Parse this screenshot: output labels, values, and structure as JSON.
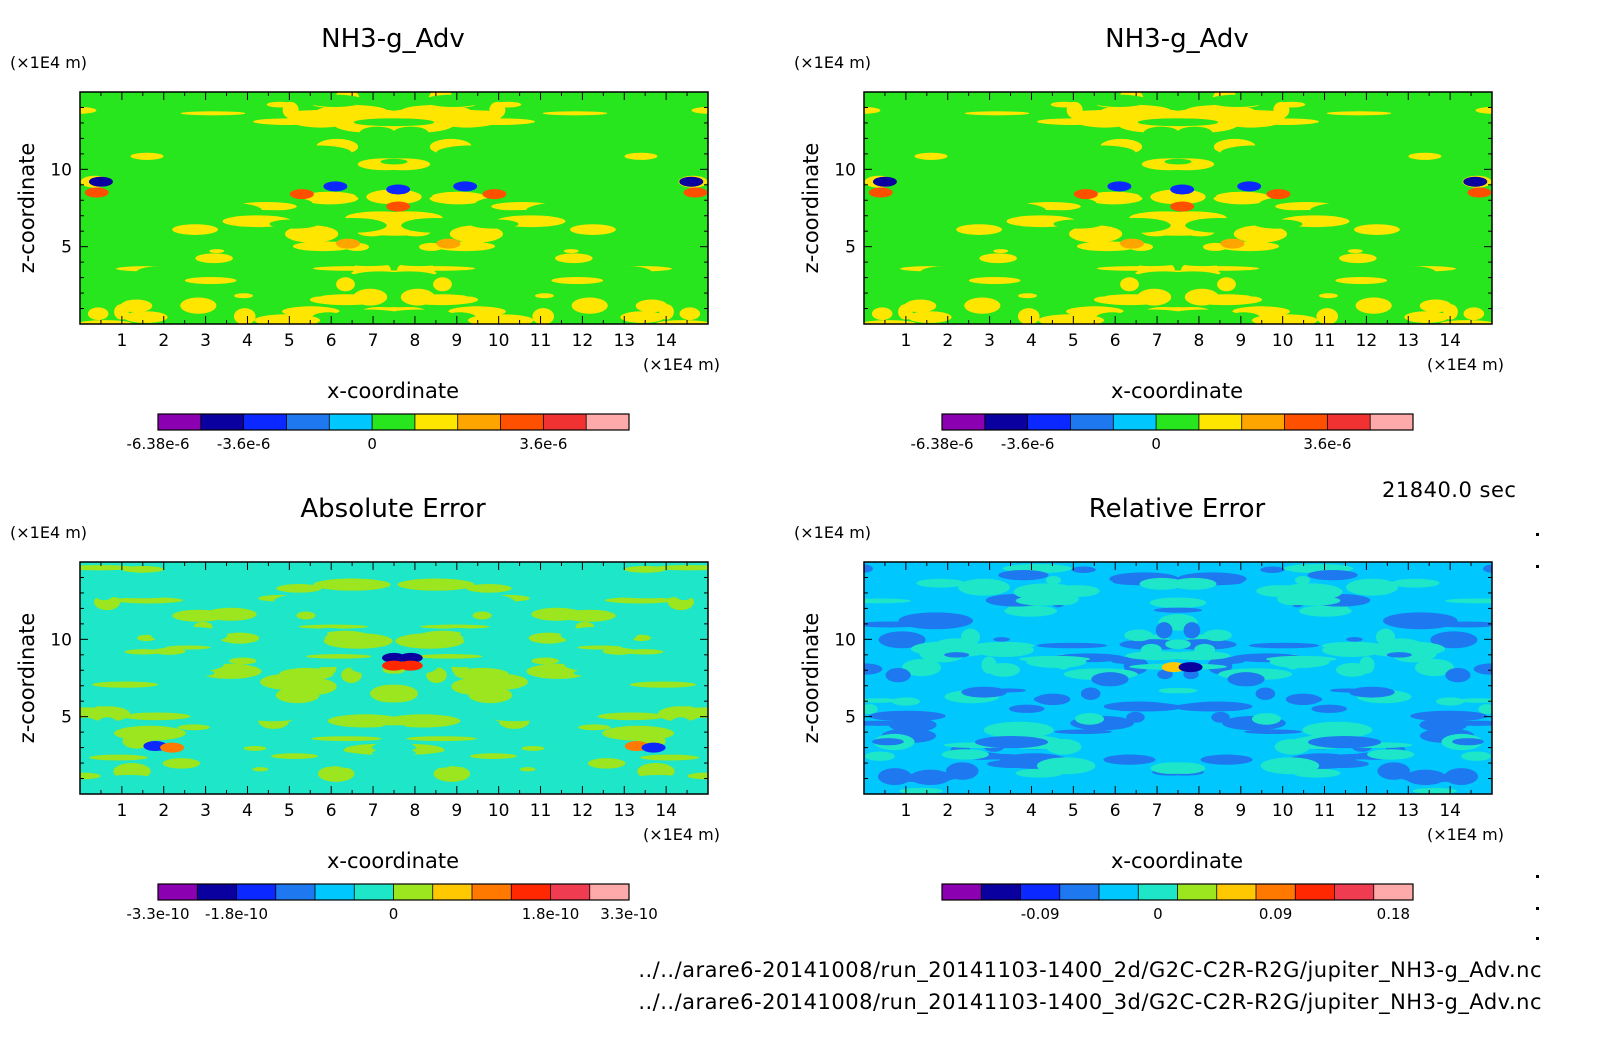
{
  "figure": {
    "time_label": "21840.0 sec",
    "files": [
      "../../arare6-20141008/run_20141103-1400_2d/G2C-C2R-R2G/jupiter_NH3-g_Adv.nc",
      "../../arare6-20141008/run_20141103-1400_3d/G2C-C2R-R2G/jupiter_NH3-g_Adv.nc"
    ]
  },
  "chart_data": [
    {
      "type": "heatmap",
      "title": "NH3-g_Adv",
      "xlabel": "x-coordinate",
      "ylabel": "z-coordinate",
      "x_unit": "(×1E4 m)",
      "y_unit": "(×1E4 m)",
      "xlim": [
        0,
        15
      ],
      "ylim": [
        0,
        15
      ],
      "x_ticks": [
        1,
        2,
        3,
        4,
        5,
        6,
        7,
        8,
        9,
        10,
        11,
        12,
        13,
        14
      ],
      "y_ticks": [
        5,
        10
      ],
      "colorbar": {
        "colors": [
          "#8b00b0",
          "#0a00a0",
          "#0a28ff",
          "#1e78f0",
          "#00c8ff",
          "#28e61e",
          "#ffe600",
          "#ffa500",
          "#ff5000",
          "#f03232",
          "#ffaaaa"
        ],
        "labels": [
          "-6.38e-6",
          "-3.6e-6",
          "0",
          "3.6e-6"
        ],
        "label_boundaries": [
          0,
          2,
          5,
          9
        ]
      },
      "background": "#28e61e",
      "blob_colors": [
        "#ffe600",
        "#28e61e"
      ],
      "features": [
        {
          "color": "#ff5000",
          "x": 5.3,
          "z": 8.4
        },
        {
          "color": "#ff5000",
          "x": 9.9,
          "z": 8.4
        },
        {
          "color": "#0a28ff",
          "x": 6.1,
          "z": 8.9
        },
        {
          "color": "#0a28ff",
          "x": 9.2,
          "z": 8.9
        },
        {
          "color": "#0a00a0",
          "x": 0.5,
          "z": 9.2
        },
        {
          "color": "#0a00a0",
          "x": 14.6,
          "z": 9.2
        },
        {
          "color": "#ff5000",
          "x": 0.4,
          "z": 8.5
        },
        {
          "color": "#ff5000",
          "x": 14.7,
          "z": 8.5
        },
        {
          "color": "#0a28ff",
          "x": 7.6,
          "z": 8.7
        },
        {
          "color": "#ff5000",
          "x": 7.6,
          "z": 7.6
        },
        {
          "color": "#ffa500",
          "x": 6.4,
          "z": 5.2
        },
        {
          "color": "#ffa500",
          "x": 8.8,
          "z": 5.2
        }
      ]
    },
    {
      "type": "heatmap",
      "title": "NH3-g_Adv",
      "xlabel": "x-coordinate",
      "ylabel": "z-coordinate",
      "x_unit": "(×1E4 m)",
      "y_unit": "(×1E4 m)",
      "xlim": [
        0,
        15
      ],
      "ylim": [
        0,
        15
      ],
      "x_ticks": [
        1,
        2,
        3,
        4,
        5,
        6,
        7,
        8,
        9,
        10,
        11,
        12,
        13,
        14
      ],
      "y_ticks": [
        5,
        10
      ],
      "colorbar": {
        "colors": [
          "#8b00b0",
          "#0a00a0",
          "#0a28ff",
          "#1e78f0",
          "#00c8ff",
          "#28e61e",
          "#ffe600",
          "#ffa500",
          "#ff5000",
          "#f03232",
          "#ffaaaa"
        ],
        "labels": [
          "-6.38e-6",
          "-3.6e-6",
          "0",
          "3.6e-6"
        ],
        "label_boundaries": [
          0,
          2,
          5,
          9
        ]
      },
      "background": "#28e61e",
      "blob_colors": [
        "#ffe600",
        "#28e61e"
      ],
      "features": [
        {
          "color": "#ff5000",
          "x": 5.3,
          "z": 8.4
        },
        {
          "color": "#ff5000",
          "x": 9.9,
          "z": 8.4
        },
        {
          "color": "#0a28ff",
          "x": 6.1,
          "z": 8.9
        },
        {
          "color": "#0a28ff",
          "x": 9.2,
          "z": 8.9
        },
        {
          "color": "#0a00a0",
          "x": 0.5,
          "z": 9.2
        },
        {
          "color": "#0a00a0",
          "x": 14.6,
          "z": 9.2
        },
        {
          "color": "#ff5000",
          "x": 0.4,
          "z": 8.5
        },
        {
          "color": "#ff5000",
          "x": 14.7,
          "z": 8.5
        },
        {
          "color": "#0a28ff",
          "x": 7.6,
          "z": 8.7
        },
        {
          "color": "#ff5000",
          "x": 7.6,
          "z": 7.6
        },
        {
          "color": "#ffa500",
          "x": 6.4,
          "z": 5.2
        },
        {
          "color": "#ffa500",
          "x": 8.8,
          "z": 5.2
        }
      ]
    },
    {
      "type": "heatmap",
      "title": "Absolute Error",
      "xlabel": "x-coordinate",
      "ylabel": "z-coordinate",
      "x_unit": "(×1E4 m)",
      "y_unit": "(×1E4 m)",
      "xlim": [
        0,
        15
      ],
      "ylim": [
        0,
        15
      ],
      "x_ticks": [
        1,
        2,
        3,
        4,
        5,
        6,
        7,
        8,
        9,
        10,
        11,
        12,
        13,
        14
      ],
      "y_ticks": [
        5,
        10
      ],
      "colorbar": {
        "colors": [
          "#8b00b0",
          "#0a00a0",
          "#0a28ff",
          "#1e78f0",
          "#00c8ff",
          "#1ee6c8",
          "#9be61e",
          "#ffc800",
          "#ff7800",
          "#ff2800",
          "#f03c50",
          "#ffaaaa"
        ],
        "labels": [
          "-3.3e-10",
          "-1.8e-10",
          "0",
          "1.8e-10",
          "3.3e-10"
        ],
        "label_boundaries": [
          0,
          2,
          6,
          10,
          12
        ]
      },
      "background": "#1ee6c8",
      "blob_colors": [
        "#9be61e",
        "#1ee6c8"
      ],
      "features": [
        {
          "color": "#0a00a0",
          "x": 7.5,
          "z": 8.8
        },
        {
          "color": "#ff2800",
          "x": 7.5,
          "z": 8.3
        },
        {
          "color": "#0a00a0",
          "x": 7.9,
          "z": 8.8
        },
        {
          "color": "#ff2800",
          "x": 7.9,
          "z": 8.3
        },
        {
          "color": "#0a28ff",
          "x": 1.8,
          "z": 3.1
        },
        {
          "color": "#ff7800",
          "x": 2.2,
          "z": 3.0
        },
        {
          "color": "#ff7800",
          "x": 13.3,
          "z": 3.1
        },
        {
          "color": "#0a28ff",
          "x": 13.7,
          "z": 3.0
        }
      ]
    },
    {
      "type": "heatmap",
      "title": "Relative Error",
      "xlabel": "x-coordinate",
      "ylabel": "z-coordinate",
      "x_unit": "(×1E4 m)",
      "y_unit": "(×1E4 m)",
      "xlim": [
        0,
        15
      ],
      "ylim": [
        0,
        15
      ],
      "x_ticks": [
        1,
        2,
        3,
        4,
        5,
        6,
        7,
        8,
        9,
        10,
        11,
        12,
        13,
        14
      ],
      "y_ticks": [
        5,
        10
      ],
      "colorbar": {
        "colors": [
          "#8b00b0",
          "#0a00a0",
          "#0a28ff",
          "#1e78f0",
          "#00c8ff",
          "#1ee6c8",
          "#9be61e",
          "#ffc800",
          "#ff7800",
          "#ff2800",
          "#f03c50",
          "#ffaaaa"
        ],
        "labels": [
          "-0.09",
          "0",
          "0.09",
          "0.18"
        ],
        "label_boundaries": [
          2.5,
          5.5,
          8.5,
          11.5
        ]
      },
      "background": "#00c8ff",
      "blob_colors": [
        "#1e78f0",
        "#1ee6c8"
      ],
      "features": [
        {
          "color": "#ffc800",
          "x": 7.4,
          "z": 8.2
        },
        {
          "color": "#0a00a0",
          "x": 7.8,
          "z": 8.2
        }
      ]
    }
  ]
}
